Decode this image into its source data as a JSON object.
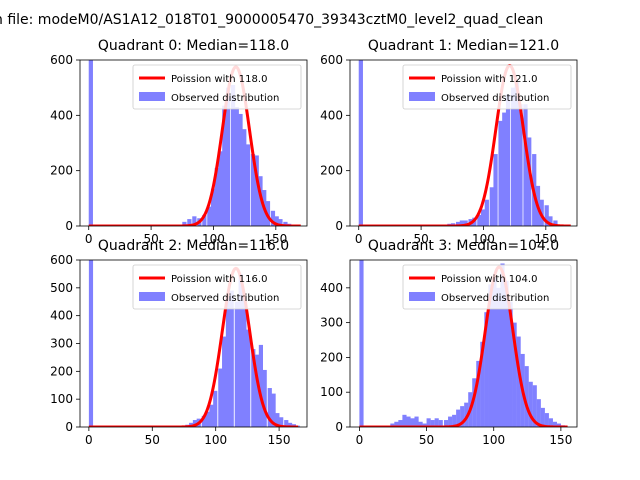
{
  "suptitle": "n file: modeM0/AS1A12_018T01_9000005470_39343cztM0_level2_quad_clean",
  "colors": {
    "hist": "#8080ff",
    "fit": "#ff0000",
    "axes": "#000000"
  },
  "chart_data": [
    {
      "type": "bar",
      "title": "Quadrant 0: Median=118.0",
      "legend": [
        "Poission with 118.0",
        "Observed distribution"
      ],
      "legend_position": "top-right",
      "xlim": [
        -7,
        175
      ],
      "ylim": [
        0,
        600
      ],
      "xticks": [
        0,
        50,
        100,
        150
      ],
      "yticks": [
        0,
        200,
        400,
        600
      ],
      "bin_width": 3.4,
      "hist_x": [
        0,
        67,
        71,
        75,
        79,
        83,
        87,
        91,
        95,
        98,
        101,
        104,
        107,
        110,
        114,
        117,
        120,
        123,
        126,
        130,
        133,
        136,
        139,
        142,
        146,
        149,
        152,
        156,
        159,
        163,
        166
      ],
      "hist_y": [
        600,
        3,
        5,
        15,
        25,
        35,
        28,
        40,
        70,
        135,
        210,
        270,
        435,
        500,
        510,
        430,
        405,
        350,
        295,
        260,
        255,
        180,
        130,
        90,
        55,
        35,
        25,
        15,
        8,
        5,
        3
      ],
      "fit_mean": 118.0,
      "fit_peak": 575,
      "fit_xrange": [
        0,
        170
      ]
    },
    {
      "type": "bar",
      "title": "Quadrant 1: Median=121.0",
      "legend": [
        "Poission with 121.0",
        "Observed distribution"
      ],
      "legend_position": "top-right",
      "xlim": [
        -7,
        175
      ],
      "ylim": [
        0,
        600
      ],
      "xticks": [
        0,
        50,
        100,
        150
      ],
      "yticks": [
        0,
        200,
        400,
        600
      ],
      "bin_width": 3.4,
      "hist_x": [
        0,
        64,
        67,
        71,
        74,
        78,
        81,
        84,
        88,
        91,
        95,
        98,
        101,
        105,
        108,
        112,
        115,
        118,
        122,
        125,
        128,
        132,
        135,
        139,
        142,
        145,
        149,
        152,
        156,
        159
      ],
      "hist_y": [
        600,
        3,
        5,
        8,
        10,
        15,
        20,
        20,
        25,
        30,
        40,
        60,
        95,
        140,
        260,
        380,
        410,
        475,
        500,
        520,
        440,
        440,
        320,
        260,
        145,
        95,
        75,
        35,
        20,
        5
      ],
      "fit_mean": 121.0,
      "fit_peak": 580,
      "fit_xrange": [
        0,
        170
      ]
    },
    {
      "type": "bar",
      "title": "Quadrant 2: Median=116.0",
      "legend": [
        "Poission with 116.0",
        "Observed distribution"
      ],
      "legend_position": "top-right",
      "xlim": [
        -7,
        172
      ],
      "ylim": [
        0,
        600
      ],
      "xticks": [
        0,
        50,
        100,
        150
      ],
      "yticks": [
        0,
        100,
        200,
        300,
        400,
        500,
        600
      ],
      "bin_width": 3.3,
      "hist_x": [
        0,
        69,
        72,
        76,
        79,
        82,
        85,
        89,
        92,
        95,
        98,
        102,
        105,
        108,
        111,
        115,
        118,
        121,
        124,
        128,
        131,
        134,
        137,
        141,
        144,
        147,
        150,
        154,
        157,
        160,
        163
      ],
      "hist_y": [
        600,
        3,
        5,
        8,
        15,
        25,
        30,
        40,
        55,
        80,
        130,
        210,
        325,
        470,
        490,
        450,
        550,
        470,
        350,
        280,
        260,
        295,
        205,
        140,
        120,
        50,
        35,
        25,
        15,
        10,
        5
      ],
      "fit_mean": 116.0,
      "fit_peak": 570,
      "fit_xrange": [
        0,
        165
      ]
    },
    {
      "type": "bar",
      "title": "Quadrant 3: Median=104.0",
      "legend": [
        "Poission with 104.0",
        "Observed distribution"
      ],
      "legend_position": "top-right",
      "xlim": [
        -7,
        162
      ],
      "ylim": [
        0,
        480
      ],
      "xticks": [
        0,
        50,
        100,
        150
      ],
      "yticks": [
        0,
        100,
        200,
        300,
        400
      ],
      "bin_width": 3.1,
      "hist_x": [
        0,
        23,
        26,
        29,
        32,
        35,
        38,
        41,
        44,
        47,
        50,
        53,
        56,
        59,
        63,
        66,
        69,
        72,
        75,
        78,
        81,
        84,
        87,
        90,
        93,
        96,
        99,
        102,
        105,
        108,
        111,
        114,
        117,
        120,
        123,
        126,
        129,
        132,
        135,
        138,
        141,
        144,
        147,
        150
      ],
      "hist_y": [
        480,
        10,
        15,
        20,
        35,
        30,
        25,
        30,
        15,
        10,
        25,
        20,
        25,
        20,
        20,
        30,
        35,
        50,
        60,
        70,
        100,
        140,
        190,
        245,
        330,
        410,
        430,
        400,
        470,
        420,
        360,
        300,
        260,
        210,
        175,
        130,
        120,
        80,
        55,
        40,
        25,
        15,
        10,
        5
      ],
      "fit_mean": 104.0,
      "fit_peak": 460,
      "fit_xrange": [
        0,
        155
      ]
    }
  ]
}
